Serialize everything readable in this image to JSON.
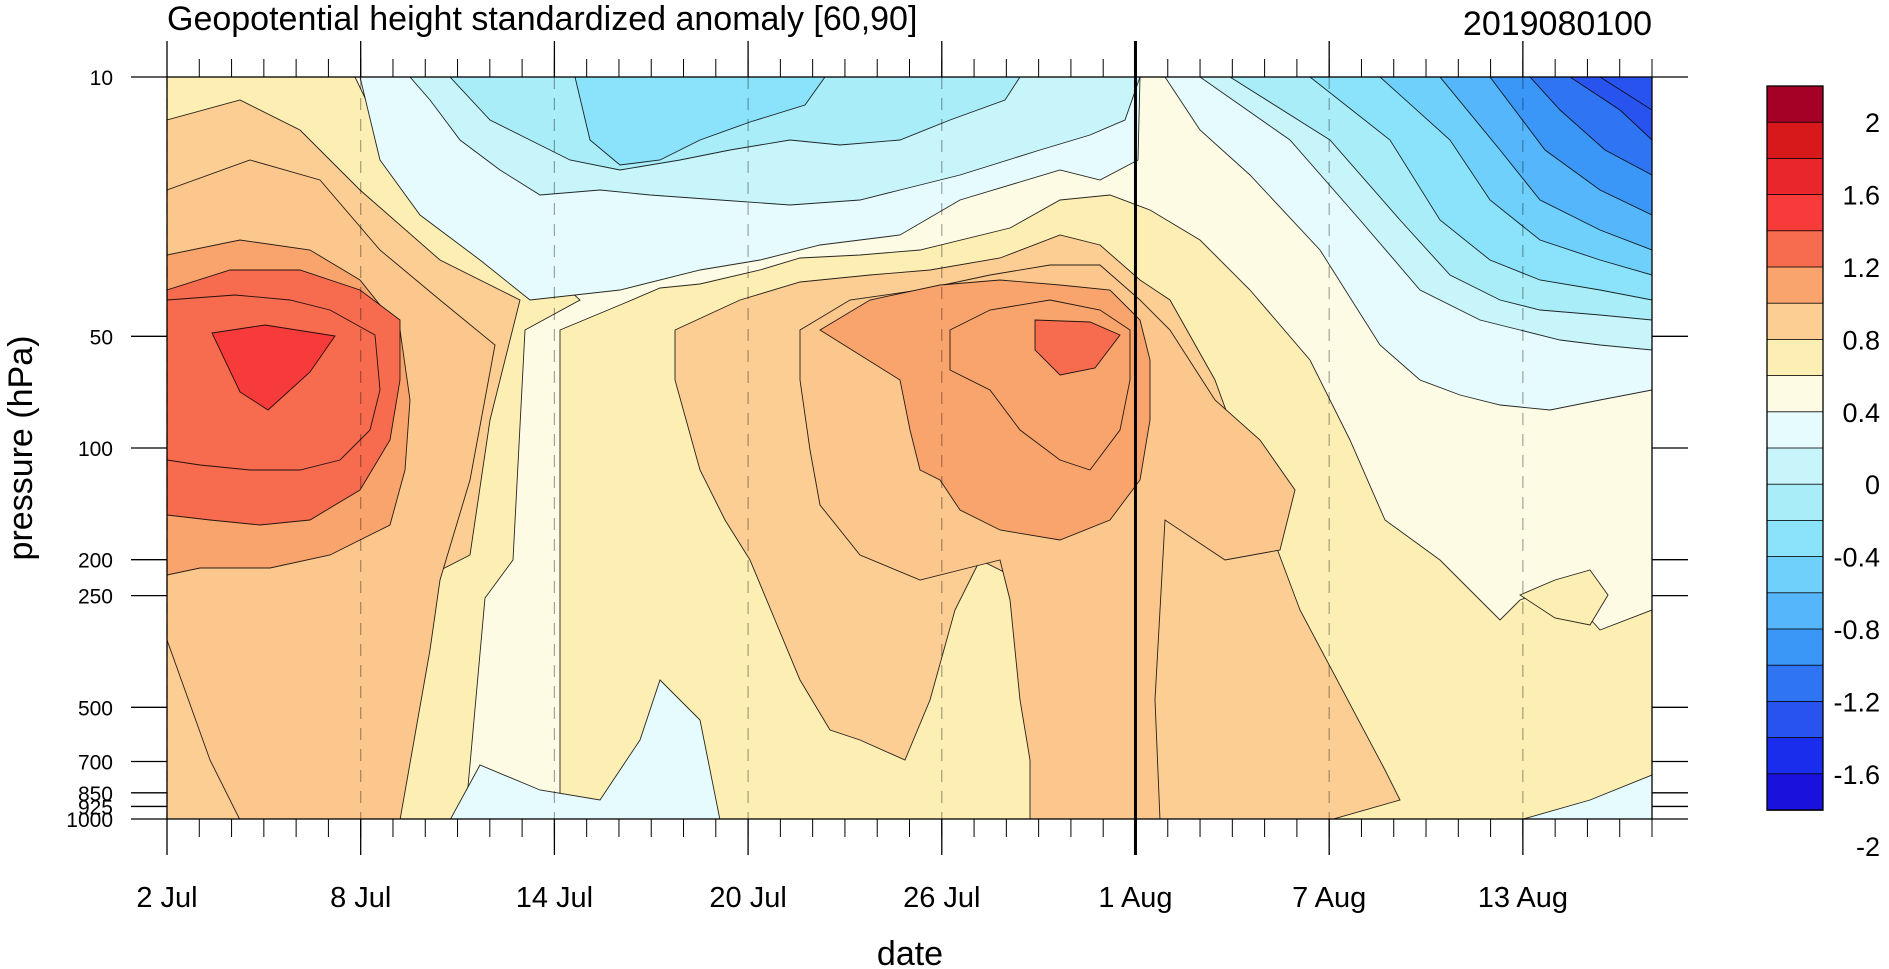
{
  "chart_data": {
    "type": "contour",
    "title": "Geopotential height standardized anomaly [60,90]",
    "date_stamp": "2019080100",
    "xlabel": "date",
    "ylabel": "pressure (hPa)",
    "xlim": [
      "2019-07-02",
      "2019-08-17"
    ],
    "x_ticks": [
      "2 Jul",
      "8 Jul",
      "14 Jul",
      "20 Jul",
      "26 Jul",
      "1 Aug",
      "7 Aug",
      "13 Aug"
    ],
    "y_scale": "log",
    "ylim": [
      1000,
      10
    ],
    "y_ticks": [
      "10",
      "50",
      "100",
      "200",
      "250",
      "500",
      "700",
      "850",
      "925",
      "1000"
    ],
    "analysis_date_marker": "1 Aug",
    "colorbar": {
      "levels": [
        -2.2,
        -2.0,
        -1.8,
        -1.6,
        -1.4,
        -1.2,
        -1.0,
        -0.8,
        -0.6,
        -0.4,
        -0.2,
        0,
        0.2,
        0.4,
        0.6,
        0.8,
        1.0,
        1.2,
        1.4,
        1.6,
        1.8,
        2.0
      ],
      "labels": [
        "2",
        "1.6",
        "1.2",
        "0.8",
        "0.4",
        "0",
        "-0.4",
        "-0.8",
        "-1.2",
        "-1.6",
        "-2"
      ],
      "colors_top_to_bottom": [
        "#a50026",
        "#d7191c",
        "#e8262b",
        "#f73a3a",
        "#f76b4f",
        "#f9a46c",
        "#fcce94",
        "#fdeeb4",
        "#fefbe4",
        "#e6fbfd",
        "#c7f5fa",
        "#a9edf9",
        "#8be3fb",
        "#6fd0fb",
        "#56b6fb",
        "#3b97f7",
        "#2f74f3",
        "#2853ef",
        "#1a2cec",
        "#1a12dc"
      ]
    },
    "key_features": [
      {
        "label": "positive maximum",
        "x": "4 Jul",
        "pressure_hPa": 60,
        "value": 1.4
      },
      {
        "label": "positive maximum",
        "x": "30 Jul",
        "pressure_hPa": 55,
        "value": 1.2
      },
      {
        "label": "negative minimum",
        "x": "15 Aug",
        "pressure_hPa": 10,
        "value": -1.8
      }
    ]
  }
}
